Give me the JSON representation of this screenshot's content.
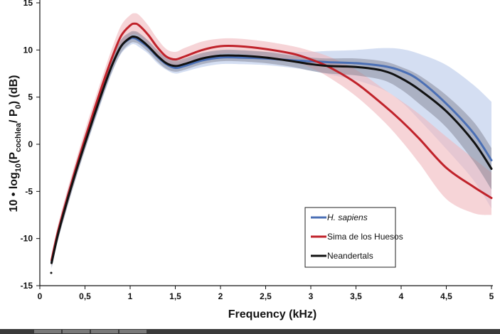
{
  "chart_data": {
    "type": "line",
    "title": "",
    "xlabel": "Frequency (kHz)",
    "ylabel_parts": {
      "prefix": "10 • log",
      "sub1": "10",
      "mid": "(P",
      "sub2": "cochlea",
      "slash": "/ P",
      "sub3": "0",
      "suffix": ")  (dB)"
    },
    "xlim": [
      0,
      5
    ],
    "ylim": [
      -15,
      15
    ],
    "xticks": [
      0,
      0.5,
      1,
      1.5,
      2,
      2.5,
      3,
      3.5,
      4,
      4.5,
      5
    ],
    "xtick_labels": [
      "0",
      "0,5",
      "1",
      "1,5",
      "2",
      "2,5",
      "3",
      "3,5",
      "4",
      "4,5",
      "5"
    ],
    "yticks": [
      -15,
      -10,
      -5,
      0,
      5,
      10,
      15
    ],
    "ytick_labels": [
      "-15",
      "-10",
      "-5",
      "0",
      "5",
      "10",
      "15"
    ],
    "grid": false,
    "legend_position": "bottom-right",
    "series": [
      {
        "name": "H. sapiens",
        "name_italic": true,
        "color": "#4a6fb5",
        "band_color": "#b8c8ea",
        "x": [
          0.13,
          0.2,
          0.3,
          0.4,
          0.5,
          0.6,
          0.7,
          0.8,
          0.9,
          1.0,
          1.05,
          1.1,
          1.2,
          1.3,
          1.4,
          1.5,
          1.6,
          1.8,
          2.0,
          2.2,
          2.5,
          2.8,
          3.0,
          3.2,
          3.5,
          3.8,
          4.0,
          4.2,
          4.5,
          4.8,
          5.0
        ],
        "y": [
          -12.5,
          -9.5,
          -6.0,
          -2.8,
          0.2,
          3.0,
          5.8,
          8.4,
          10.4,
          11.2,
          11.25,
          11.0,
          10.3,
          9.3,
          8.5,
          8.1,
          8.3,
          8.9,
          9.2,
          9.2,
          9.1,
          8.9,
          8.8,
          8.7,
          8.6,
          8.3,
          7.8,
          6.8,
          4.3,
          1.2,
          -1.7
        ],
        "upper": [
          -11.8,
          -8.8,
          -5.2,
          -2.0,
          1.0,
          3.8,
          6.6,
          9.2,
          11.1,
          11.8,
          11.9,
          11.7,
          11.0,
          10.0,
          9.1,
          8.7,
          8.9,
          9.6,
          9.9,
          9.9,
          9.8,
          9.8,
          9.8,
          9.9,
          10.0,
          10.2,
          10.1,
          9.6,
          8.4,
          6.3,
          4.5
        ],
        "lower": [
          -13.2,
          -10.2,
          -6.8,
          -3.6,
          -0.6,
          2.2,
          5.0,
          7.6,
          9.6,
          10.5,
          10.6,
          10.3,
          9.6,
          8.6,
          7.9,
          7.5,
          7.7,
          8.2,
          8.5,
          8.5,
          8.4,
          8.1,
          7.8,
          7.4,
          6.8,
          5.8,
          4.5,
          2.6,
          -0.5,
          -3.8,
          -6.8
        ]
      },
      {
        "name": "Sima de los Huesos",
        "name_italic": false,
        "color": "#c0222a",
        "band_color": "#f0b8bc",
        "x": [
          0.13,
          0.2,
          0.3,
          0.4,
          0.5,
          0.6,
          0.7,
          0.8,
          0.9,
          1.0,
          1.05,
          1.1,
          1.2,
          1.3,
          1.4,
          1.5,
          1.6,
          1.8,
          2.0,
          2.2,
          2.5,
          2.8,
          3.0,
          3.2,
          3.5,
          3.8,
          4.0,
          4.2,
          4.5,
          4.8,
          5.0
        ],
        "y": [
          -12.3,
          -9.3,
          -5.8,
          -2.5,
          0.6,
          3.6,
          6.5,
          9.2,
          11.5,
          12.6,
          12.8,
          12.6,
          11.6,
          10.3,
          9.3,
          9.0,
          9.3,
          10.0,
          10.4,
          10.4,
          10.1,
          9.6,
          9.0,
          8.2,
          6.5,
          4.2,
          2.5,
          0.6,
          -2.5,
          -4.5,
          -5.7
        ],
        "upper": [
          -11.7,
          -8.6,
          -5.0,
          -1.7,
          1.5,
          4.5,
          7.4,
          10.2,
          12.6,
          13.7,
          13.9,
          13.7,
          12.6,
          11.2,
          10.1,
          9.8,
          10.2,
          10.9,
          11.2,
          11.2,
          10.9,
          10.4,
          9.9,
          9.3,
          7.9,
          5.9,
          4.6,
          3.2,
          0.8,
          -1.5,
          -3.0
        ],
        "lower": [
          -12.9,
          -10.0,
          -6.6,
          -3.3,
          -0.3,
          2.7,
          5.6,
          8.2,
          10.4,
          11.5,
          11.7,
          11.5,
          10.6,
          9.4,
          8.5,
          8.2,
          8.4,
          9.1,
          9.6,
          9.6,
          9.3,
          8.8,
          8.1,
          7.1,
          5.1,
          2.5,
          0.4,
          -2.0,
          -5.8,
          -7.3,
          -7.5
        ]
      },
      {
        "name": "Neandertals",
        "name_italic": false,
        "color": "#111111",
        "band_color": "#7a7a8a",
        "x": [
          0.13,
          0.2,
          0.3,
          0.4,
          0.5,
          0.6,
          0.7,
          0.8,
          0.9,
          1.0,
          1.05,
          1.1,
          1.2,
          1.3,
          1.4,
          1.5,
          1.6,
          1.8,
          2.0,
          2.2,
          2.5,
          2.8,
          3.0,
          3.2,
          3.5,
          3.8,
          4.0,
          4.2,
          4.5,
          4.8,
          5.0
        ],
        "y": [
          -12.6,
          -9.6,
          -6.1,
          -2.9,
          0.1,
          3.0,
          5.8,
          8.4,
          10.4,
          11.3,
          11.4,
          11.2,
          10.4,
          9.4,
          8.6,
          8.3,
          8.5,
          9.1,
          9.4,
          9.4,
          9.2,
          8.8,
          8.5,
          8.3,
          8.2,
          7.8,
          7.0,
          5.8,
          3.5,
          0.3,
          -2.6
        ],
        "upper": [
          -12.1,
          -9.0,
          -5.4,
          -2.2,
          0.8,
          3.7,
          6.5,
          9.1,
          11.1,
          11.9,
          12.0,
          11.8,
          11.0,
          10.0,
          9.2,
          8.9,
          9.1,
          9.7,
          10.0,
          10.0,
          9.8,
          9.4,
          9.2,
          9.1,
          9.1,
          8.8,
          8.2,
          7.3,
          5.2,
          2.4,
          -0.4
        ],
        "lower": [
          -13.1,
          -10.2,
          -6.8,
          -3.6,
          -0.6,
          2.3,
          5.1,
          7.7,
          9.7,
          10.7,
          10.8,
          10.6,
          9.8,
          8.8,
          8.0,
          7.7,
          7.9,
          8.5,
          8.8,
          8.8,
          8.6,
          8.2,
          7.8,
          7.5,
          7.3,
          6.8,
          5.8,
          4.3,
          1.8,
          -1.8,
          -4.8
        ]
      }
    ]
  }
}
